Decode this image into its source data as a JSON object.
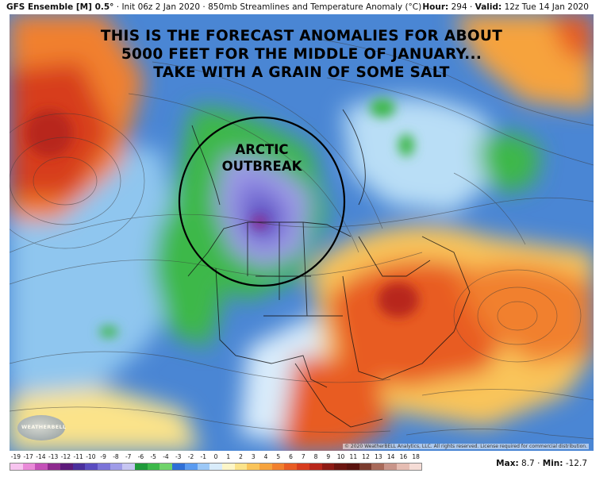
{
  "header": {
    "model": "GFS Ensemble [M] 0.5°",
    "init": "Init 06z 2 Jan 2020",
    "product": "850mb Streamlines and Temperature Anomaly (°C)",
    "hour_label": "Hour:",
    "hour_value": "294",
    "valid_label": "Valid:",
    "valid_value": "12z Tue 14 Jan 2020"
  },
  "annotation": {
    "line1": "THIS IS THE FORECAST ANOMALIES FOR ABOUT",
    "line2": "5000 FEET FOR THE MIDDLE OF JANUARY...",
    "line3": "TAKE WITH A GRAIN OF SOME SALT"
  },
  "callout": {
    "line1": "ARCTIC",
    "line2": "OUTBREAK"
  },
  "logo_text": "WEATHERBELL",
  "copyright": "© 2020 WeatherBELL Analytics, LLC. All rights reserved. License required for commercial distribution.",
  "colorbar": {
    "ticks": [
      "-19",
      "-17",
      "-14",
      "-13",
      "-12",
      "-11",
      "-10",
      "-9",
      "-8",
      "-7",
      "-6",
      "-5",
      "-4",
      "-3",
      "-2",
      "-1",
      "0",
      "1",
      "2",
      "3",
      "4",
      "5",
      "6",
      "7",
      "8",
      "9",
      "10",
      "11",
      "12",
      "13",
      "14",
      "16",
      "18"
    ],
    "colors": [
      "#f7c4ef",
      "#e98ad8",
      "#c451b8",
      "#8e2a8e",
      "#5c1a7a",
      "#4a2f9c",
      "#5a4cc0",
      "#7b74d8",
      "#9f9ce8",
      "#c7c6f2",
      "#1f9a3a",
      "#3cb84a",
      "#6fd36a",
      "#2f6fd6",
      "#5a9bf0",
      "#9cc8f7",
      "#d9ecfb",
      "#fdf6c8",
      "#fbe38a",
      "#f9c45a",
      "#f6a33d",
      "#f1802e",
      "#e85c24",
      "#d73c1e",
      "#b8261a",
      "#8d1a14",
      "#6b1510",
      "#5a120e",
      "#7a3b2e",
      "#a86a5a",
      "#c9958a",
      "#e6bdb3",
      "#f5dcd6"
    ]
  },
  "stats": {
    "max_label": "Max:",
    "max_value": "8.7",
    "min_label": "Min:",
    "min_value": "-12.7"
  }
}
